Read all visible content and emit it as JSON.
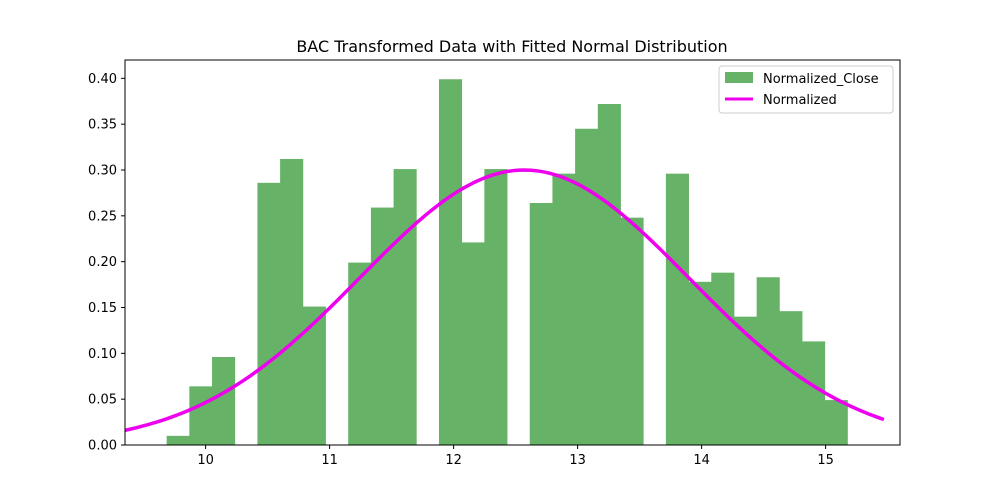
{
  "chart_data": {
    "type": "bar",
    "title": "BAC Transformed Data with Fitted Normal Distribution",
    "xlabel": "",
    "ylabel": "",
    "xlim": [
      9.35,
      15.6
    ],
    "ylim": [
      0,
      0.42
    ],
    "x_ticks": [
      10,
      11,
      12,
      13,
      14,
      15
    ],
    "x_tick_labels": [
      "10",
      "11",
      "12",
      "13",
      "14",
      "15"
    ],
    "y_ticks": [
      0.0,
      0.05,
      0.1,
      0.15,
      0.2,
      0.25,
      0.3,
      0.35,
      0.4
    ],
    "y_tick_labels": [
      "0.00",
      "0.05",
      "0.10",
      "0.15",
      "0.20",
      "0.25",
      "0.30",
      "0.35",
      "0.40"
    ],
    "grid": false,
    "legend_position": "top-right",
    "bin_width": 0.183,
    "histogram": {
      "name": "Normalized_Close",
      "color": "#66b266",
      "bin_starts": [
        9.686,
        9.869,
        10.052,
        10.235,
        10.418,
        10.601,
        10.784,
        10.967,
        11.15,
        11.333,
        11.516,
        11.699,
        11.882,
        12.065,
        12.248,
        12.431,
        12.614,
        12.797,
        12.98,
        13.163,
        13.346,
        13.529,
        13.712,
        13.895,
        14.078,
        14.261,
        14.444,
        14.627,
        14.81,
        14.993
      ],
      "values": [
        0.01,
        0.064,
        0.096,
        0.0,
        0.286,
        0.312,
        0.151,
        0.0,
        0.199,
        0.259,
        0.301,
        0.0,
        0.399,
        0.221,
        0.301,
        0.0,
        0.264,
        0.296,
        0.345,
        0.372,
        0.248,
        0.0,
        0.296,
        0.178,
        0.188,
        0.14,
        0.183,
        0.146,
        0.113,
        0.049
      ]
    },
    "series": [
      {
        "name": "Normalized",
        "type": "line",
        "color": "#ee00ee",
        "mean": 12.57,
        "std": 1.33
      }
    ],
    "curve_x_range": [
      9.35,
      15.47
    ]
  }
}
